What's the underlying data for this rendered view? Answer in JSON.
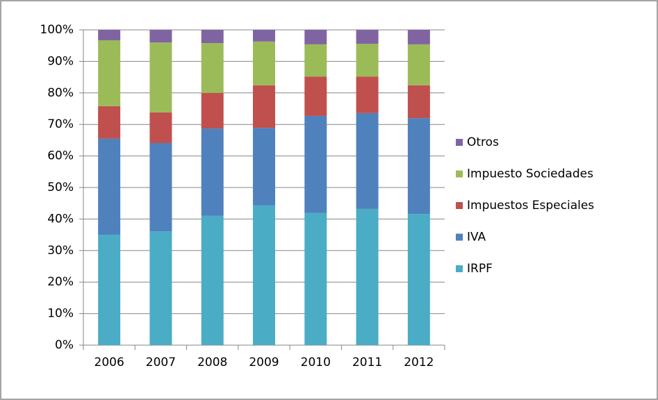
{
  "chart_data": {
    "type": "stacked_bar",
    "categories": [
      "2006",
      "2007",
      "2008",
      "2009",
      "2010",
      "2011",
      "2012"
    ],
    "series": [
      {
        "name": "IRPF",
        "color": "#4bacc6",
        "values": [
          35.0,
          36.1,
          41.0,
          44.3,
          41.9,
          43.2,
          41.6
        ]
      },
      {
        "name": "IVA",
        "color": "#4f81bd",
        "values": [
          30.5,
          28.0,
          27.7,
          24.6,
          30.8,
          30.4,
          30.4
        ]
      },
      {
        "name": "Impuestos Especiales",
        "color": "#c0504d",
        "values": [
          10.3,
          9.7,
          11.3,
          13.5,
          12.5,
          11.6,
          10.4
        ]
      },
      {
        "name": "Impuesto Sociedades",
        "color": "#9bbb59",
        "values": [
          20.9,
          22.2,
          15.8,
          13.9,
          10.2,
          10.4,
          13.0
        ]
      },
      {
        "name": "Otros",
        "color": "#8064a2",
        "values": [
          3.3,
          4.0,
          4.2,
          3.7,
          4.6,
          4.4,
          4.6
        ]
      }
    ],
    "ylim": [
      0,
      100
    ],
    "yticks": [
      {
        "value": 0,
        "label": "0%"
      },
      {
        "value": 10,
        "label": "10%"
      },
      {
        "value": 20,
        "label": "20%"
      },
      {
        "value": 30,
        "label": "30%"
      },
      {
        "value": 40,
        "label": "40%"
      },
      {
        "value": 50,
        "label": "50%"
      },
      {
        "value": 60,
        "label": "60%"
      },
      {
        "value": 70,
        "label": "70%"
      },
      {
        "value": 80,
        "label": "80%"
      },
      {
        "value": 90,
        "label": "90%"
      },
      {
        "value": 100,
        "label": "100%"
      }
    ],
    "grid": true,
    "legend": "right"
  }
}
